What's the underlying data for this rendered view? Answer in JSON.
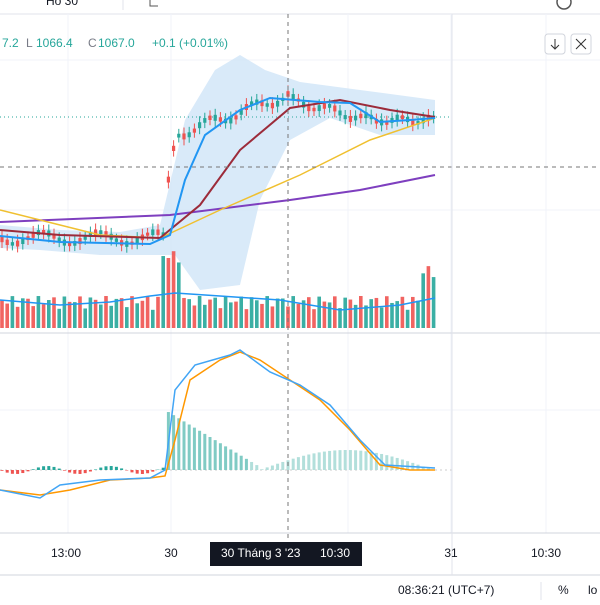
{
  "toolbar": {
    "interval": "Hồ 30"
  },
  "legend": {
    "high_tail": "7.2",
    "low_label": "L",
    "low": "1066.4",
    "close_label": "C",
    "close": "1067.0",
    "change": "+0.1 (+0.01%)"
  },
  "time_axis": {
    "labels": [
      "13:00",
      "30",
      "10:30",
      "31",
      "10:30"
    ],
    "crosshair": "30 Tháng 3 '23"
  },
  "status_bar": {
    "clock": "08:36:21 (UTC+7)",
    "percent": "%",
    "log": "lo"
  }
}
